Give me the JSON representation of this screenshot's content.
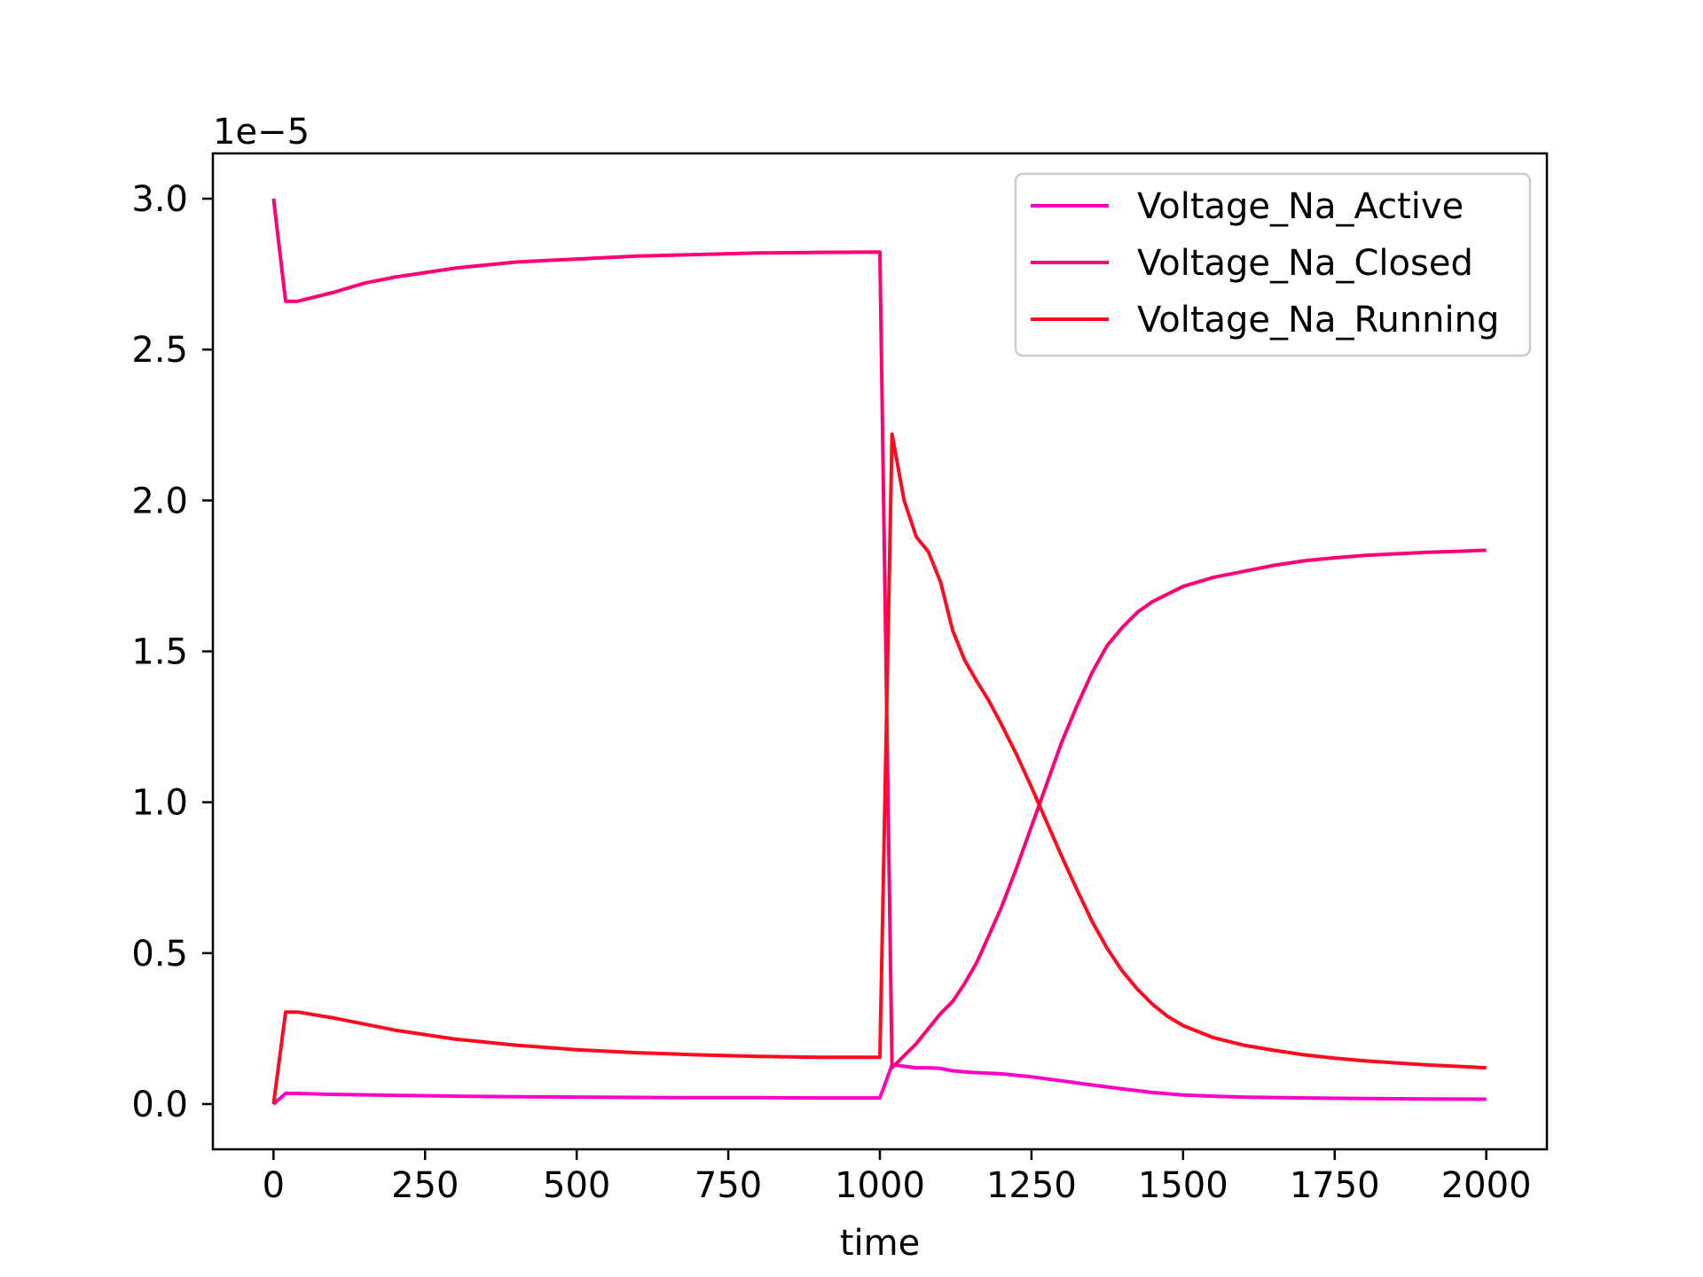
{
  "chart_data": {
    "type": "line",
    "xlabel": "time",
    "ylabel": "",
    "y_offset_text": "1e−5",
    "y_multiplier": 1e-05,
    "xlim": [
      -100,
      2100
    ],
    "ylim": [
      -0.15,
      3.15
    ],
    "x_ticks": [
      0,
      250,
      500,
      750,
      1000,
      1250,
      1500,
      1750,
      2000
    ],
    "x_tick_labels": [
      "0",
      "250",
      "500",
      "750",
      "1000",
      "1250",
      "1500",
      "1750",
      "2000"
    ],
    "y_ticks": [
      0.0,
      0.5,
      1.0,
      1.5,
      2.0,
      2.5,
      3.0
    ],
    "y_tick_labels": [
      "0.0",
      "0.5",
      "1.0",
      "1.5",
      "2.0",
      "2.5",
      "3.0"
    ],
    "grid": false,
    "legend_position": "top-right",
    "series": [
      {
        "name": "Voltage_Na_Active",
        "color": "#ff00c8",
        "x": [
          0,
          20,
          40,
          100,
          200,
          300,
          400,
          500,
          600,
          700,
          800,
          900,
          1000,
          1020,
          1040,
          1060,
          1080,
          1100,
          1120,
          1150,
          1200,
          1250,
          1300,
          1350,
          1400,
          1450,
          1500,
          1550,
          1600,
          1700,
          1800,
          1900,
          2000
        ],
        "y": [
          0.0,
          0.035,
          0.035,
          0.032,
          0.029,
          0.026,
          0.024,
          0.023,
          0.022,
          0.021,
          0.021,
          0.02,
          0.02,
          0.13,
          0.125,
          0.12,
          0.12,
          0.118,
          0.11,
          0.105,
          0.1,
          0.09,
          0.077,
          0.063,
          0.05,
          0.038,
          0.03,
          0.026,
          0.023,
          0.02,
          0.018,
          0.017,
          0.016
        ]
      },
      {
        "name": "Voltage_Na_Closed",
        "color": "#ff0077",
        "x": [
          0,
          20,
          40,
          100,
          150,
          200,
          300,
          400,
          500,
          600,
          700,
          800,
          900,
          1000,
          1020,
          1040,
          1060,
          1080,
          1100,
          1120,
          1140,
          1160,
          1180,
          1200,
          1225,
          1250,
          1275,
          1300,
          1325,
          1350,
          1375,
          1400,
          1425,
          1450,
          1475,
          1500,
          1550,
          1600,
          1650,
          1700,
          1750,
          1800,
          1900,
          2000
        ],
        "y": [
          3.0,
          2.66,
          2.66,
          2.69,
          2.72,
          2.74,
          2.77,
          2.79,
          2.8,
          2.81,
          2.815,
          2.82,
          2.822,
          2.823,
          0.12,
          0.16,
          0.2,
          0.25,
          0.3,
          0.34,
          0.4,
          0.47,
          0.56,
          0.65,
          0.78,
          0.92,
          1.06,
          1.2,
          1.32,
          1.43,
          1.52,
          1.58,
          1.63,
          1.665,
          1.69,
          1.715,
          1.745,
          1.765,
          1.785,
          1.8,
          1.81,
          1.818,
          1.828,
          1.835
        ]
      },
      {
        "name": "Voltage_Na_Running",
        "color": "#ff0a1e",
        "x": [
          0,
          20,
          40,
          100,
          200,
          300,
          400,
          500,
          600,
          700,
          800,
          900,
          1000,
          1020,
          1040,
          1060,
          1080,
          1100,
          1120,
          1140,
          1160,
          1180,
          1200,
          1225,
          1250,
          1275,
          1300,
          1325,
          1350,
          1375,
          1400,
          1425,
          1450,
          1475,
          1500,
          1550,
          1600,
          1650,
          1700,
          1750,
          1800,
          1900,
          2000
        ],
        "y": [
          0.0,
          0.305,
          0.305,
          0.285,
          0.245,
          0.215,
          0.195,
          0.18,
          0.17,
          0.163,
          0.158,
          0.155,
          0.155,
          2.22,
          2.0,
          1.88,
          1.83,
          1.73,
          1.57,
          1.47,
          1.4,
          1.335,
          1.26,
          1.16,
          1.05,
          0.935,
          0.82,
          0.71,
          0.605,
          0.515,
          0.44,
          0.38,
          0.33,
          0.29,
          0.26,
          0.22,
          0.195,
          0.178,
          0.163,
          0.152,
          0.143,
          0.13,
          0.12
        ]
      }
    ]
  }
}
